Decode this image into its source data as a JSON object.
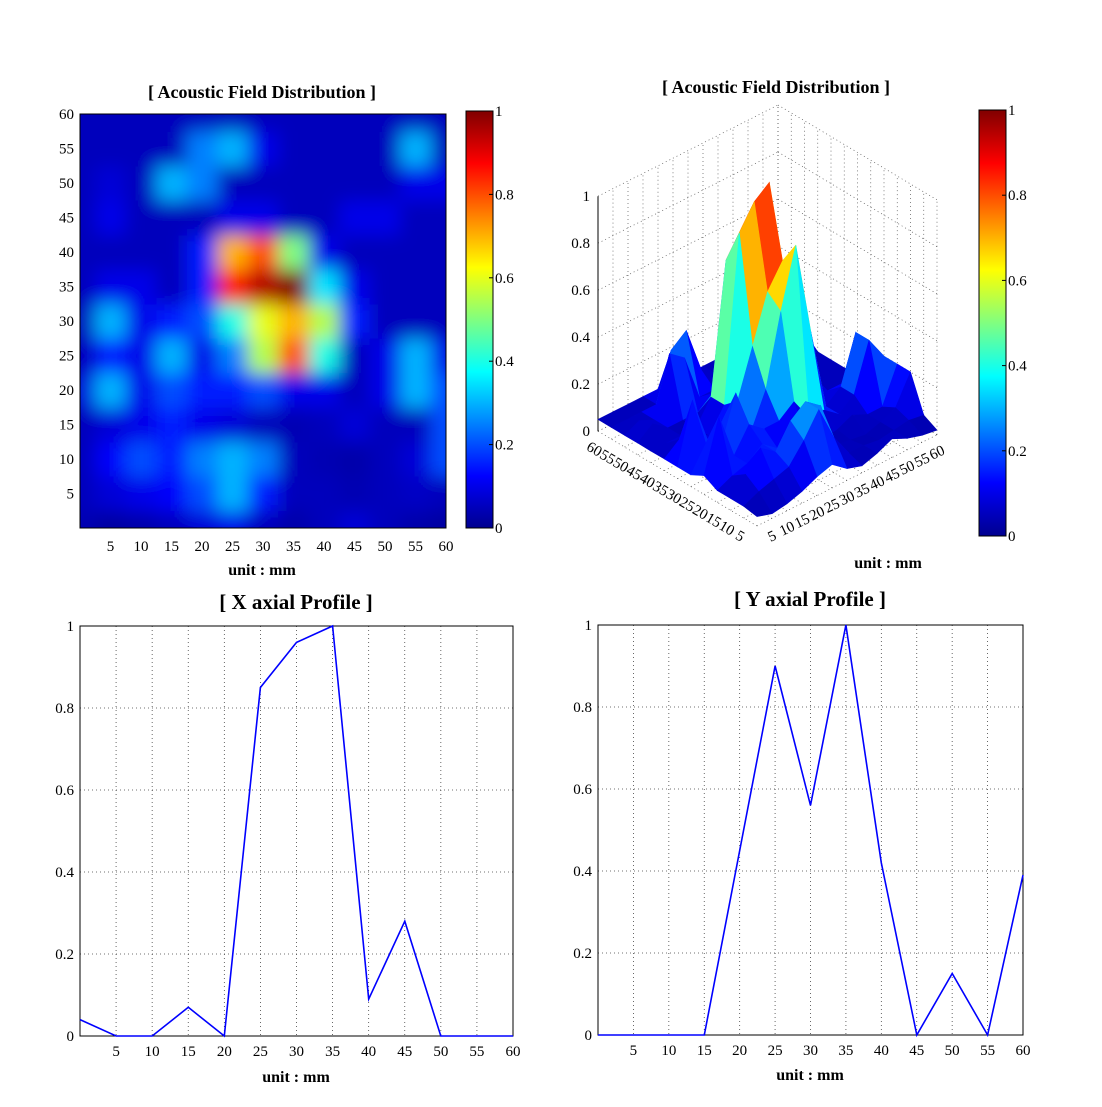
{
  "colormap": [
    "#00008f",
    "#0000ff",
    "#0080ff",
    "#00ffff",
    "#80ff80",
    "#ffff00",
    "#ff8000",
    "#ff0000",
    "#800000"
  ],
  "chart_data": [
    {
      "type": "heatmap",
      "title": "[ Acoustic Field Distribution ]",
      "xlabel": "unit : mm",
      "ylabel": "",
      "xlim": [
        0,
        60
      ],
      "ylim": [
        0,
        60
      ],
      "xticks": [
        "5",
        "10",
        "15",
        "20",
        "25",
        "30",
        "35",
        "40",
        "45",
        "50",
        "55",
        "60"
      ],
      "yticks": [
        "5",
        "10",
        "15",
        "20",
        "25",
        "30",
        "35",
        "40",
        "45",
        "50",
        "55",
        "60"
      ],
      "colorbar": {
        "clim": [
          0,
          1
        ],
        "ticks": [
          "0",
          "0.2",
          "0.4",
          "0.6",
          "0.8",
          "1"
        ]
      },
      "x": [
        0,
        5,
        10,
        15,
        20,
        25,
        30,
        35,
        40,
        45,
        50,
        55,
        60
      ],
      "y": [
        0,
        5,
        10,
        15,
        20,
        25,
        30,
        35,
        40,
        45,
        50,
        55,
        60
      ],
      "z": [
        [
          0.04,
          0.02,
          0.03,
          0.05,
          0.08,
          0.1,
          0.05,
          0.03,
          0.05,
          0.08,
          0.05,
          0.03,
          0.02
        ],
        [
          0.05,
          0.08,
          0.1,
          0.12,
          0.2,
          0.3,
          0.15,
          0.05,
          0.05,
          0.04,
          0.05,
          0.06,
          0.05
        ],
        [
          0.05,
          0.12,
          0.2,
          0.15,
          0.25,
          0.3,
          0.25,
          0.05,
          0.04,
          0.03,
          0.05,
          0.08,
          0.2
        ],
        [
          0.05,
          0.08,
          0.1,
          0.15,
          0.1,
          0.08,
          0.05,
          0.04,
          0.05,
          0.08,
          0.05,
          0.05,
          0.2
        ],
        [
          0.08,
          0.3,
          0.1,
          0.2,
          0.15,
          0.15,
          0.2,
          0.1,
          0.1,
          0.05,
          0.1,
          0.3,
          0.2
        ],
        [
          0.05,
          0.15,
          0.1,
          0.3,
          0.1,
          0.25,
          0.55,
          0.8,
          0.4,
          0.05,
          0.1,
          0.3,
          0.1
        ],
        [
          0.05,
          0.3,
          0.1,
          0.15,
          0.2,
          0.4,
          0.6,
          0.7,
          0.55,
          0.15,
          0.05,
          0.05,
          0.05
        ],
        [
          0.05,
          0.1,
          0.1,
          0.05,
          0.15,
          0.85,
          0.95,
          1.0,
          0.35,
          0.1,
          0.05,
          0.05,
          0.05
        ],
        [
          0.05,
          0.05,
          0.05,
          0.05,
          0.15,
          0.7,
          0.8,
          0.5,
          0.1,
          0.05,
          0.05,
          0.05,
          0.05
        ],
        [
          0.05,
          0.1,
          0.05,
          0.05,
          0.05,
          0.1,
          0.1,
          0.05,
          0.05,
          0.1,
          0.1,
          0.05,
          0.05
        ],
        [
          0.05,
          0.08,
          0.05,
          0.3,
          0.25,
          0.05,
          0.05,
          0.05,
          0.05,
          0.05,
          0.05,
          0.1,
          0.1
        ],
        [
          0.05,
          0.05,
          0.05,
          0.05,
          0.25,
          0.3,
          0.1,
          0.05,
          0.05,
          0.05,
          0.05,
          0.3,
          0.05
        ],
        [
          0.05,
          0.05,
          0.05,
          0.05,
          0.05,
          0.05,
          0.05,
          0.05,
          0.05,
          0.05,
          0.05,
          0.05,
          0.05
        ]
      ]
    },
    {
      "type": "surface",
      "title": "[ Acoustic Field Distribution ]",
      "xlabel": "unit : mm",
      "ylabel": "",
      "zlim": [
        0,
        1
      ],
      "zticks": [
        "0",
        "0.2",
        "0.4",
        "0.6",
        "0.8",
        "1"
      ],
      "xticks": [
        "5",
        "10",
        "15",
        "20",
        "25",
        "30",
        "35",
        "40",
        "45",
        "50",
        "55",
        "60"
      ],
      "yticks": [
        "5",
        "10",
        "15",
        "20",
        "25",
        "30",
        "35",
        "40",
        "45",
        "50",
        "55",
        "60"
      ],
      "colorbar": {
        "clim": [
          0,
          1
        ],
        "ticks": [
          "0",
          "0.2",
          "0.4",
          "0.6",
          "0.8",
          "1"
        ]
      },
      "data_ref": "same field as heatmap"
    },
    {
      "type": "line",
      "title": "[ X axial Profile ]",
      "xlabel": "unit : mm",
      "ylabel": "",
      "xlim": [
        0,
        60
      ],
      "ylim": [
        0,
        1
      ],
      "grid": true,
      "xticks": [
        "5",
        "10",
        "15",
        "20",
        "25",
        "30",
        "35",
        "40",
        "45",
        "50",
        "55",
        "60"
      ],
      "yticks": [
        "0",
        "0.2",
        "0.4",
        "0.6",
        "0.8",
        "1"
      ],
      "x": [
        0,
        5,
        10,
        15,
        20,
        25,
        30,
        35,
        40,
        45,
        50,
        55,
        60
      ],
      "values": [
        0.04,
        0.0,
        0.0,
        0.07,
        0.0,
        0.85,
        0.96,
        1.0,
        0.09,
        0.28,
        0.0,
        0.0,
        0.0
      ],
      "color": "#0000ff"
    },
    {
      "type": "line",
      "title": "[ Y axial Profile ]",
      "xlabel": "unit : mm",
      "ylabel": "",
      "xlim": [
        0,
        60
      ],
      "ylim": [
        0,
        1
      ],
      "grid": true,
      "xticks": [
        "5",
        "10",
        "15",
        "20",
        "25",
        "30",
        "35",
        "40",
        "45",
        "50",
        "55",
        "60"
      ],
      "yticks": [
        "0",
        "0.2",
        "0.4",
        "0.6",
        "0.8",
        "1"
      ],
      "x": [
        0,
        5,
        10,
        15,
        20,
        25,
        30,
        35,
        40,
        45,
        50,
        55,
        60
      ],
      "values": [
        0.0,
        0.0,
        0.0,
        0.0,
        0.45,
        0.9,
        0.56,
        1.0,
        0.42,
        0.0,
        0.15,
        0.0,
        0.39
      ],
      "color": "#0000ff"
    }
  ]
}
